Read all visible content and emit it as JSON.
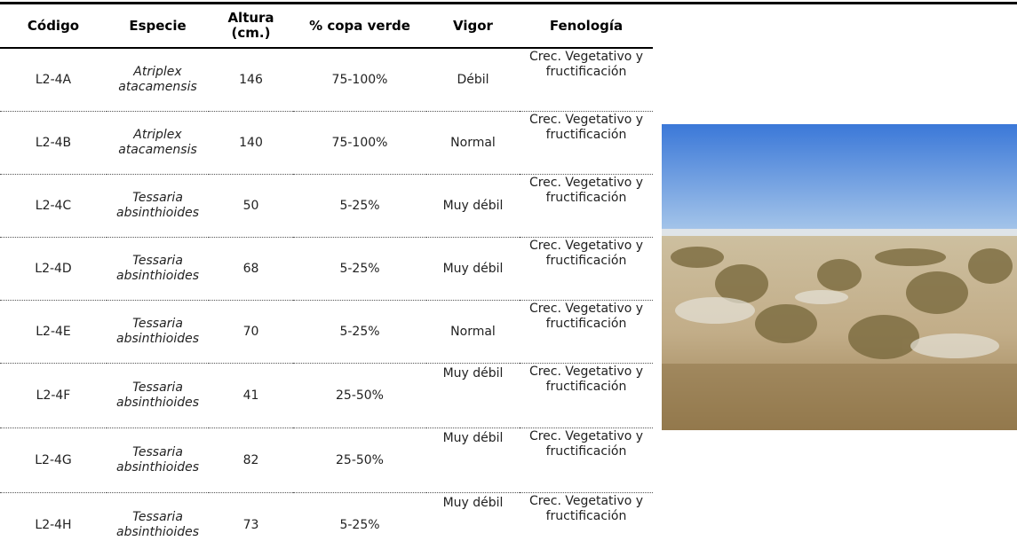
{
  "table": {
    "header": [
      "Código",
      "Especie",
      "Altura (cm.)",
      "% copa verde",
      "Vigor",
      "Fenología"
    ],
    "rows": [
      [
        "L2-4A",
        "Atriplex atacamensis",
        "146",
        "75-100%",
        "Débil",
        "Crec. Vegetativo y fructificación"
      ],
      [
        "L2-4B",
        "Atriplex atacamensis",
        "140",
        "75-100%",
        "Normal",
        "Crec. Vegetativo y fructificación"
      ],
      [
        "L2-4C",
        "Tessaria absinthioides",
        "50",
        "5-25%",
        "Muy débil",
        "Crec. Vegetativo y fructificación"
      ],
      [
        "L2-4D",
        "Tessaria absinthioides",
        "68",
        "5-25%",
        "Muy débil",
        "Crec. Vegetativo y fructificación"
      ],
      [
        "L2-4E",
        "Tessaria absinthioides",
        "70",
        "5-25%",
        "Normal",
        "Crec. Vegetativo y fructificación"
      ],
      [
        "L2-4F",
        "Tessaria absinthioides",
        "41",
        "25-50%",
        "Muy débil",
        "Crec. Vegetativo y fructificación"
      ],
      [
        "L2-4G",
        "Tessaria absinthioides",
        "82",
        "25-50%",
        "Muy débil",
        "Crec. Vegetativo y fructificación"
      ],
      [
        "L2-4H",
        "Tessaria absinthioides",
        "73",
        "5-25%",
        "Muy débil",
        "Crec. Vegetativo y fructificación"
      ]
    ],
    "top_aligned_vigor": [
      5,
      6,
      7
    ]
  }
}
